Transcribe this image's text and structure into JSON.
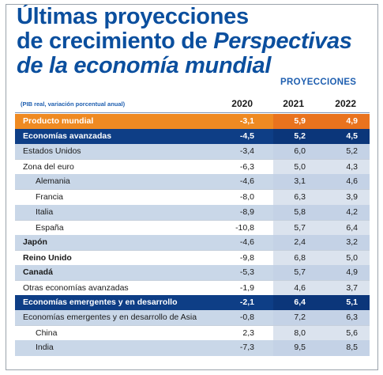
{
  "title": {
    "line1": "Últimas proyecciones",
    "line2_pre": "de crecimiento de ",
    "line2_em": "Perspectivas",
    "line3": "de la economía mundial"
  },
  "projections_label": "PROYECCIONES",
  "subheader": "(PIB real, variación porcentual anual)",
  "years": [
    "2020",
    "2021",
    "2022"
  ],
  "rows": [
    {
      "label": "Producto mundial",
      "v2020": "-3,1",
      "v2021": "5,9",
      "v2022": "4,9",
      "style": "orange"
    },
    {
      "label": "Economías avanzadas",
      "v2020": "-4,5",
      "v2021": "5,2",
      "v2022": "4,5",
      "style": "navy"
    },
    {
      "label": "Estados Unidos",
      "v2020": "-3,4",
      "v2021": "6,0",
      "v2022": "5,2",
      "style": "bl"
    },
    {
      "label": "Zona del euro",
      "v2020": "-6,3",
      "v2021": "5,0",
      "v2022": "4,3",
      "style": "wh"
    },
    {
      "label": "Alemania",
      "v2020": "-4,6",
      "v2021": "3,1",
      "v2022": "4,6",
      "style": "bl",
      "indent": true
    },
    {
      "label": "Francia",
      "v2020": "-8,0",
      "v2021": "6,3",
      "v2022": "3,9",
      "style": "wh",
      "indent": true
    },
    {
      "label": "Italia",
      "v2020": "-8,9",
      "v2021": "5,8",
      "v2022": "4,2",
      "style": "bl",
      "indent": true
    },
    {
      "label": "España",
      "v2020": "-10,8",
      "v2021": "5,7",
      "v2022": "6,4",
      "style": "wh",
      "indent": true
    },
    {
      "label": "Japón",
      "v2020": "-4,6",
      "v2021": "2,4",
      "v2022": "3,2",
      "style": "bl",
      "bold": true
    },
    {
      "label": "Reino Unido",
      "v2020": "-9,8",
      "v2021": "6,8",
      "v2022": "5,0",
      "style": "wh",
      "bold": true
    },
    {
      "label": "Canadá",
      "v2020": "-5,3",
      "v2021": "5,7",
      "v2022": "4,9",
      "style": "bl",
      "bold": true
    },
    {
      "label": "Otras economías avanzadas",
      "v2020": "-1,9",
      "v2021": "4,6",
      "v2022": "3,7",
      "style": "wh"
    },
    {
      "label": "Economías emergentes y en desarrollo",
      "v2020": "-2,1",
      "v2021": "6,4",
      "v2022": "5,1",
      "style": "navy"
    },
    {
      "label": "Economías emergentes y en desarrollo de Asia",
      "v2020": "-0,8",
      "v2021": "7,2",
      "v2022": "6,3",
      "style": "bl"
    },
    {
      "label": "China",
      "v2020": "2,3",
      "v2021": "8,0",
      "v2022": "5,6",
      "style": "wh",
      "indent": true
    },
    {
      "label": "India",
      "v2020": "-7,3",
      "v2021": "9,5",
      "v2022": "8,5",
      "style": "bl",
      "indent": true
    }
  ]
}
